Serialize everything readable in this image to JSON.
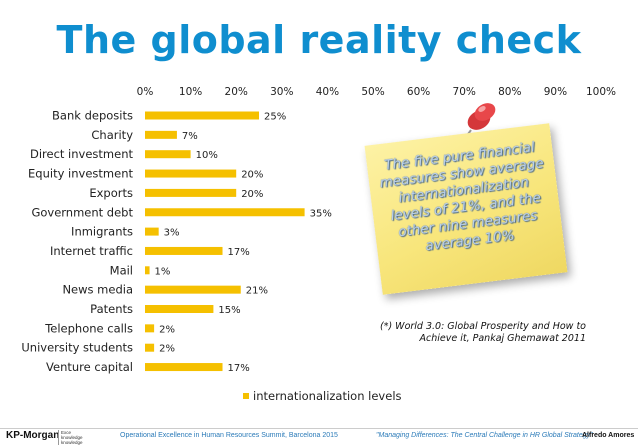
{
  "title": "The global reality check",
  "chart_data": {
    "type": "bar",
    "orientation": "horizontal",
    "categories": [
      "Bank deposits",
      "Charity",
      "Direct investment",
      "Equity investment",
      "Exports",
      "Government debt",
      "Inmigrants",
      "Internet traffic",
      "Mail",
      "News media",
      "Patents",
      "Telephone calls",
      "University students",
      "Venture capital"
    ],
    "series": [
      {
        "name": "internationalization levels",
        "values": [
          25,
          7,
          10,
          20,
          20,
          35,
          3,
          17,
          1,
          21,
          15,
          2,
          2,
          17
        ]
      }
    ],
    "data_labels": [
      "25%",
      "7%",
      "10%",
      "20%",
      "20%",
      "35%",
      "3%",
      "17%",
      "1%",
      "21%",
      "15%",
      "2%",
      "2%",
      "17%"
    ],
    "x_ticks": [
      0,
      10,
      20,
      30,
      40,
      50,
      60,
      70,
      80,
      90,
      100
    ],
    "x_tick_labels": [
      "0%",
      "10%",
      "20%",
      "30%",
      "40%",
      "50%",
      "60%",
      "70%",
      "80%",
      "90%",
      "100%"
    ],
    "xlim": [
      0,
      100
    ],
    "x_axis_position": "top",
    "grid": false,
    "legend": "bottom",
    "bar_color": "#f5c000"
  },
  "note": {
    "text": "The five pure financial measures show average internationalization levels of 21%, and the other nine measures average 10%"
  },
  "source": {
    "line1": "(*) World 3.0: Global Prosperity and How to",
    "line2": "Achieve it, Pankaj Ghemawat 2011"
  },
  "footer": {
    "logo": "KP-Morgan",
    "logo_tag": "Exce knowledge knowledge",
    "left": "Operational Excellence in Human Resources Summit, Barcelona 2015",
    "right": "\"Managing Differences: The Central Challenge in HR Global Strategy\"",
    "author": "Alfredo Amores"
  },
  "colors": {
    "title": "#0f8ecf",
    "bar": "#f5c000",
    "note": "#f8e67c",
    "footer_text": "#2a7ab8"
  }
}
